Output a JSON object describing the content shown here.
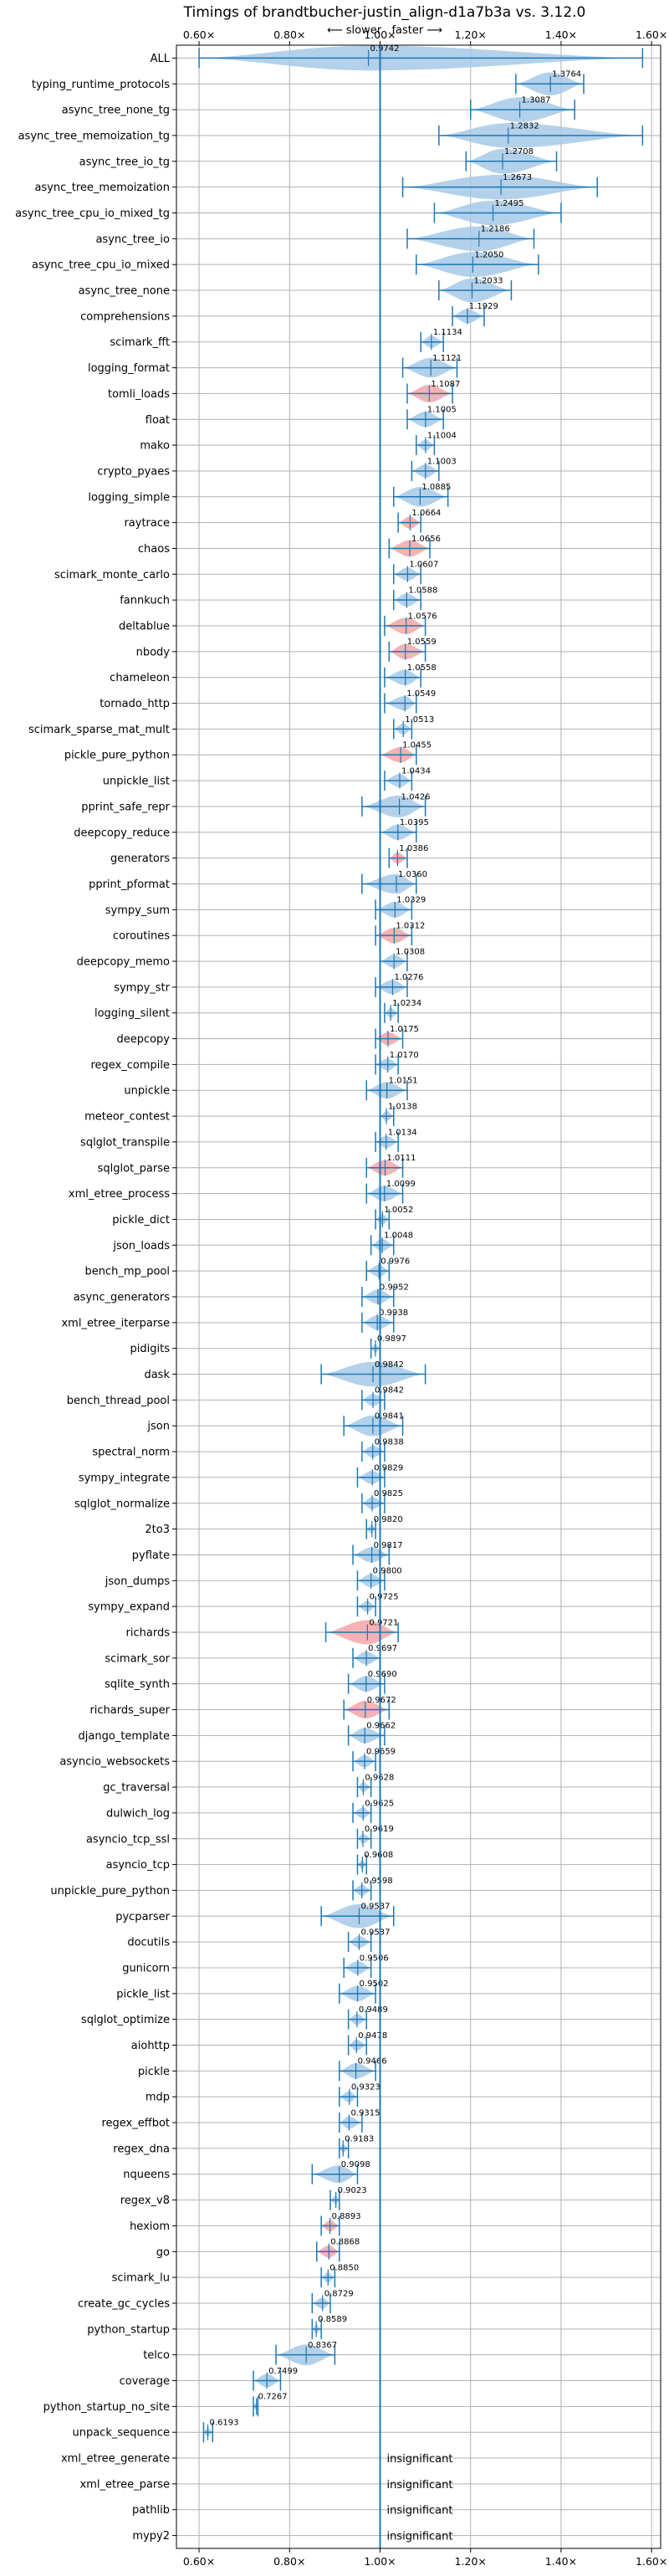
{
  "chart_data": {
    "type": "violin",
    "title": "Timings of brandtbucher-justin_align-d1a7b3a vs. 3.12.0",
    "subtitle": "⟵ slower   faster ⟶",
    "xlim": [
      0.55,
      1.62
    ],
    "xticks": [
      0.6,
      0.8,
      1.0,
      1.2,
      1.4,
      1.6
    ],
    "xtick_labels": [
      "0.60×",
      "0.80×",
      "1.00×",
      "1.20×",
      "1.40×",
      "1.60×"
    ],
    "reference_line": 1.0,
    "grid": true,
    "colors": {
      "faster": "#1f77b4",
      "slower": "#d62728",
      "violin_blue": "#a6c9e6",
      "violin_red": "#f4a4a7",
      "reference": "#1f77b4",
      "grid": "#b0b0b0"
    },
    "benchmarks": [
      {
        "name": "ALL",
        "value": 0.9742,
        "min": 0.6,
        "max": 1.58,
        "label": "0.9742",
        "color": "blue"
      },
      {
        "name": "typing_runtime_protocols",
        "value": 1.3764,
        "min": 1.3,
        "max": 1.45,
        "label": "1.3764",
        "color": "blue"
      },
      {
        "name": "async_tree_none_tg",
        "value": 1.3087,
        "min": 1.2,
        "max": 1.43,
        "label": "1.3087",
        "color": "blue"
      },
      {
        "name": "async_tree_memoization_tg",
        "value": 1.2832,
        "min": 1.13,
        "max": 1.58,
        "label": "1.2832",
        "color": "blue"
      },
      {
        "name": "async_tree_io_tg",
        "value": 1.2708,
        "min": 1.19,
        "max": 1.39,
        "label": "1.2708",
        "color": "blue"
      },
      {
        "name": "async_tree_memoization",
        "value": 1.2673,
        "min": 1.05,
        "max": 1.48,
        "label": "1.2673",
        "color": "blue"
      },
      {
        "name": "async_tree_cpu_io_mixed_tg",
        "value": 1.2495,
        "min": 1.12,
        "max": 1.4,
        "label": "1.2495",
        "color": "blue"
      },
      {
        "name": "async_tree_io",
        "value": 1.2186,
        "min": 1.06,
        "max": 1.34,
        "label": "1.2186",
        "color": "blue"
      },
      {
        "name": "async_tree_cpu_io_mixed",
        "value": 1.205,
        "min": 1.08,
        "max": 1.35,
        "label": "1.2050",
        "color": "blue"
      },
      {
        "name": "async_tree_none",
        "value": 1.2033,
        "min": 1.13,
        "max": 1.29,
        "label": "1.2033",
        "color": "blue"
      },
      {
        "name": "comprehensions",
        "value": 1.1929,
        "min": 1.16,
        "max": 1.23,
        "label": "1.1929",
        "color": "blue"
      },
      {
        "name": "scimark_fft",
        "value": 1.1134,
        "min": 1.09,
        "max": 1.14,
        "label": "1.1134",
        "color": "blue"
      },
      {
        "name": "logging_format",
        "value": 1.1121,
        "min": 1.05,
        "max": 1.17,
        "label": "1.1121",
        "color": "blue"
      },
      {
        "name": "tomli_loads",
        "value": 1.1087,
        "min": 1.06,
        "max": 1.16,
        "label": "1.1087",
        "color": "red"
      },
      {
        "name": "float",
        "value": 1.1005,
        "min": 1.06,
        "max": 1.14,
        "label": "1.1005",
        "color": "blue"
      },
      {
        "name": "mako",
        "value": 1.1004,
        "min": 1.08,
        "max": 1.12,
        "label": "1.1004",
        "color": "blue"
      },
      {
        "name": "crypto_pyaes",
        "value": 1.1003,
        "min": 1.07,
        "max": 1.13,
        "label": "1.1003",
        "color": "blue"
      },
      {
        "name": "logging_simple",
        "value": 1.0885,
        "min": 1.03,
        "max": 1.15,
        "label": "1.0885",
        "color": "blue"
      },
      {
        "name": "raytrace",
        "value": 1.0664,
        "min": 1.04,
        "max": 1.09,
        "label": "1.0664",
        "color": "red"
      },
      {
        "name": "chaos",
        "value": 1.0656,
        "min": 1.02,
        "max": 1.11,
        "label": "1.0656",
        "color": "red"
      },
      {
        "name": "scimark_monte_carlo",
        "value": 1.0607,
        "min": 1.03,
        "max": 1.09,
        "label": "1.0607",
        "color": "blue"
      },
      {
        "name": "fannkuch",
        "value": 1.0588,
        "min": 1.03,
        "max": 1.09,
        "label": "1.0588",
        "color": "blue"
      },
      {
        "name": "deltablue",
        "value": 1.0576,
        "min": 1.01,
        "max": 1.1,
        "label": "1.0576",
        "color": "red"
      },
      {
        "name": "nbody",
        "value": 1.0559,
        "min": 1.02,
        "max": 1.1,
        "label": "1.0559",
        "color": "red"
      },
      {
        "name": "chameleon",
        "value": 1.0558,
        "min": 1.01,
        "max": 1.09,
        "label": "1.0558",
        "color": "blue"
      },
      {
        "name": "tornado_http",
        "value": 1.0549,
        "min": 1.01,
        "max": 1.08,
        "label": "1.0549",
        "color": "blue"
      },
      {
        "name": "scimark_sparse_mat_mult",
        "value": 1.0513,
        "min": 1.03,
        "max": 1.07,
        "label": "1.0513",
        "color": "blue"
      },
      {
        "name": "pickle_pure_python",
        "value": 1.0455,
        "min": 1.0,
        "max": 1.08,
        "label": "1.0455",
        "color": "red"
      },
      {
        "name": "unpickle_list",
        "value": 1.0434,
        "min": 1.01,
        "max": 1.07,
        "label": "1.0434",
        "color": "blue"
      },
      {
        "name": "pprint_safe_repr",
        "value": 1.0426,
        "min": 0.96,
        "max": 1.1,
        "label": "1.0426",
        "color": "blue"
      },
      {
        "name": "deepcopy_reduce",
        "value": 1.0395,
        "min": 1.0,
        "max": 1.08,
        "label": "1.0395",
        "color": "blue"
      },
      {
        "name": "generators",
        "value": 1.0386,
        "min": 1.02,
        "max": 1.06,
        "label": "1.0386",
        "color": "red"
      },
      {
        "name": "pprint_pformat",
        "value": 1.036,
        "min": 0.96,
        "max": 1.08,
        "label": "1.0360",
        "color": "blue"
      },
      {
        "name": "sympy_sum",
        "value": 1.0329,
        "min": 0.99,
        "max": 1.07,
        "label": "1.0329",
        "color": "blue"
      },
      {
        "name": "coroutines",
        "value": 1.0312,
        "min": 0.99,
        "max": 1.07,
        "label": "1.0312",
        "color": "red"
      },
      {
        "name": "deepcopy_memo",
        "value": 1.0308,
        "min": 1.0,
        "max": 1.06,
        "label": "1.0308",
        "color": "blue"
      },
      {
        "name": "sympy_str",
        "value": 1.0276,
        "min": 0.99,
        "max": 1.06,
        "label": "1.0276",
        "color": "blue"
      },
      {
        "name": "logging_silent",
        "value": 1.0234,
        "min": 1.01,
        "max": 1.04,
        "label": "1.0234",
        "color": "blue"
      },
      {
        "name": "deepcopy",
        "value": 1.0175,
        "min": 0.99,
        "max": 1.05,
        "label": "1.0175",
        "color": "red"
      },
      {
        "name": "regex_compile",
        "value": 1.017,
        "min": 0.99,
        "max": 1.04,
        "label": "1.0170",
        "color": "blue"
      },
      {
        "name": "unpickle",
        "value": 1.0151,
        "min": 0.97,
        "max": 1.06,
        "label": "1.0151",
        "color": "blue"
      },
      {
        "name": "meteor_contest",
        "value": 1.0138,
        "min": 1.0,
        "max": 1.03,
        "label": "1.0138",
        "color": "blue"
      },
      {
        "name": "sqlglot_transpile",
        "value": 1.0134,
        "min": 0.99,
        "max": 1.04,
        "label": "1.0134",
        "color": "blue"
      },
      {
        "name": "sqlglot_parse",
        "value": 1.0111,
        "min": 0.97,
        "max": 1.05,
        "label": "1.0111",
        "color": "red"
      },
      {
        "name": "xml_etree_process",
        "value": 1.0099,
        "min": 0.97,
        "max": 1.05,
        "label": "1.0099",
        "color": "blue"
      },
      {
        "name": "pickle_dict",
        "value": 1.0052,
        "min": 0.99,
        "max": 1.02,
        "label": "1.0052",
        "color": "blue"
      },
      {
        "name": "json_loads",
        "value": 1.0048,
        "min": 0.98,
        "max": 1.03,
        "label": "1.0048",
        "color": "blue"
      },
      {
        "name": "bench_mp_pool",
        "value": 0.9976,
        "min": 0.97,
        "max": 1.02,
        "label": "0.9976",
        "color": "blue"
      },
      {
        "name": "async_generators",
        "value": 0.9952,
        "min": 0.96,
        "max": 1.03,
        "label": "0.9952",
        "color": "blue"
      },
      {
        "name": "xml_etree_iterparse",
        "value": 0.9938,
        "min": 0.96,
        "max": 1.03,
        "label": "0.9938",
        "color": "blue"
      },
      {
        "name": "pidigits",
        "value": 0.9897,
        "min": 0.98,
        "max": 1.0,
        "label": "0.9897",
        "color": "blue"
      },
      {
        "name": "dask",
        "value": 0.9842,
        "min": 0.87,
        "max": 1.1,
        "label": "0.9842",
        "color": "blue"
      },
      {
        "name": "bench_thread_pool",
        "value": 0.9842,
        "min": 0.96,
        "max": 1.01,
        "label": "0.9842",
        "color": "blue"
      },
      {
        "name": "json",
        "value": 0.9841,
        "min": 0.92,
        "max": 1.05,
        "label": "0.9841",
        "color": "blue"
      },
      {
        "name": "spectral_norm",
        "value": 0.9838,
        "min": 0.96,
        "max": 1.01,
        "label": "0.9838",
        "color": "blue"
      },
      {
        "name": "sympy_integrate",
        "value": 0.9829,
        "min": 0.95,
        "max": 1.01,
        "label": "0.9829",
        "color": "blue"
      },
      {
        "name": "sqlglot_normalize",
        "value": 0.9825,
        "min": 0.96,
        "max": 1.01,
        "label": "0.9825",
        "color": "blue"
      },
      {
        "name": "2to3",
        "value": 0.982,
        "min": 0.97,
        "max": 0.99,
        "label": "0.9820",
        "color": "blue"
      },
      {
        "name": "pyflate",
        "value": 0.9817,
        "min": 0.94,
        "max": 1.02,
        "label": "0.9817",
        "color": "blue"
      },
      {
        "name": "json_dumps",
        "value": 0.98,
        "min": 0.95,
        "max": 1.01,
        "label": "0.9800",
        "color": "blue"
      },
      {
        "name": "sympy_expand",
        "value": 0.9725,
        "min": 0.95,
        "max": 0.99,
        "label": "0.9725",
        "color": "blue"
      },
      {
        "name": "richards",
        "value": 0.9721,
        "min": 0.88,
        "max": 1.04,
        "label": "0.9721",
        "color": "red"
      },
      {
        "name": "scimark_sor",
        "value": 0.9697,
        "min": 0.94,
        "max": 1.0,
        "label": "0.9697",
        "color": "blue"
      },
      {
        "name": "sqlite_synth",
        "value": 0.969,
        "min": 0.93,
        "max": 1.01,
        "label": "0.9690",
        "color": "blue"
      },
      {
        "name": "richards_super",
        "value": 0.9672,
        "min": 0.92,
        "max": 1.02,
        "label": "0.9672",
        "color": "red"
      },
      {
        "name": "django_template",
        "value": 0.9662,
        "min": 0.93,
        "max": 1.01,
        "label": "0.9662",
        "color": "blue"
      },
      {
        "name": "asyncio_websockets",
        "value": 0.9659,
        "min": 0.94,
        "max": 0.99,
        "label": "0.9659",
        "color": "blue"
      },
      {
        "name": "gc_traversal",
        "value": 0.9628,
        "min": 0.95,
        "max": 0.98,
        "label": "0.9628",
        "color": "blue"
      },
      {
        "name": "dulwich_log",
        "value": 0.9625,
        "min": 0.94,
        "max": 0.98,
        "label": "0.9625",
        "color": "blue"
      },
      {
        "name": "asyncio_tcp_ssl",
        "value": 0.9619,
        "min": 0.95,
        "max": 0.98,
        "label": "0.9619",
        "color": "blue"
      },
      {
        "name": "asyncio_tcp",
        "value": 0.9608,
        "min": 0.95,
        "max": 0.97,
        "label": "0.9608",
        "color": "blue"
      },
      {
        "name": "unpickle_pure_python",
        "value": 0.9598,
        "min": 0.94,
        "max": 0.98,
        "label": "0.9598",
        "color": "blue"
      },
      {
        "name": "pycparser",
        "value": 0.9537,
        "min": 0.87,
        "max": 1.03,
        "label": "0.9537",
        "color": "blue"
      },
      {
        "name": "docutils",
        "value": 0.9537,
        "min": 0.93,
        "max": 0.98,
        "label": "0.9537",
        "color": "blue"
      },
      {
        "name": "gunicorn",
        "value": 0.9506,
        "min": 0.92,
        "max": 0.98,
        "label": "0.9506",
        "color": "blue"
      },
      {
        "name": "pickle_list",
        "value": 0.9502,
        "min": 0.91,
        "max": 0.99,
        "label": "0.9502",
        "color": "blue"
      },
      {
        "name": "sqlglot_optimize",
        "value": 0.9489,
        "min": 0.93,
        "max": 0.97,
        "label": "0.9489",
        "color": "blue"
      },
      {
        "name": "aiohttp",
        "value": 0.9478,
        "min": 0.93,
        "max": 0.97,
        "label": "0.9478",
        "color": "blue"
      },
      {
        "name": "pickle",
        "value": 0.9466,
        "min": 0.91,
        "max": 0.99,
        "label": "0.9466",
        "color": "blue"
      },
      {
        "name": "mdp",
        "value": 0.9323,
        "min": 0.91,
        "max": 0.95,
        "label": "0.9323",
        "color": "blue"
      },
      {
        "name": "regex_effbot",
        "value": 0.9315,
        "min": 0.91,
        "max": 0.96,
        "label": "0.9315",
        "color": "blue"
      },
      {
        "name": "regex_dna",
        "value": 0.9183,
        "min": 0.91,
        "max": 0.93,
        "label": "0.9183",
        "color": "blue"
      },
      {
        "name": "nqueens",
        "value": 0.9098,
        "min": 0.85,
        "max": 0.95,
        "label": "0.9098",
        "color": "blue"
      },
      {
        "name": "regex_v8",
        "value": 0.9023,
        "min": 0.89,
        "max": 0.91,
        "label": "0.9023",
        "color": "blue"
      },
      {
        "name": "hexiom",
        "value": 0.8893,
        "min": 0.87,
        "max": 0.91,
        "label": "0.8893",
        "color": "red"
      },
      {
        "name": "go",
        "value": 0.8868,
        "min": 0.86,
        "max": 0.91,
        "label": "0.8868",
        "color": "red"
      },
      {
        "name": "scimark_lu",
        "value": 0.885,
        "min": 0.87,
        "max": 0.9,
        "label": "0.8850",
        "color": "blue"
      },
      {
        "name": "create_gc_cycles",
        "value": 0.8729,
        "min": 0.85,
        "max": 0.89,
        "label": "0.8729",
        "color": "blue"
      },
      {
        "name": "python_startup",
        "value": 0.8589,
        "min": 0.85,
        "max": 0.87,
        "label": "0.8589",
        "color": "blue"
      },
      {
        "name": "telco",
        "value": 0.8367,
        "min": 0.77,
        "max": 0.9,
        "label": "0.8367",
        "color": "blue"
      },
      {
        "name": "coverage",
        "value": 0.7499,
        "min": 0.72,
        "max": 0.78,
        "label": "0.7499",
        "color": "blue"
      },
      {
        "name": "python_startup_no_site",
        "value": 0.7267,
        "min": 0.72,
        "max": 0.73,
        "label": "0.7267",
        "color": "blue"
      },
      {
        "name": "unpack_sequence",
        "value": 0.6193,
        "min": 0.61,
        "max": 0.63,
        "label": "0.6193",
        "color": "blue"
      },
      {
        "name": "xml_etree_generate",
        "value": null,
        "label": "insignificant"
      },
      {
        "name": "xml_etree_parse",
        "value": null,
        "label": "insignificant"
      },
      {
        "name": "pathlib",
        "value": null,
        "label": "insignificant"
      },
      {
        "name": "mypy2",
        "value": null,
        "label": "insignificant"
      }
    ]
  }
}
